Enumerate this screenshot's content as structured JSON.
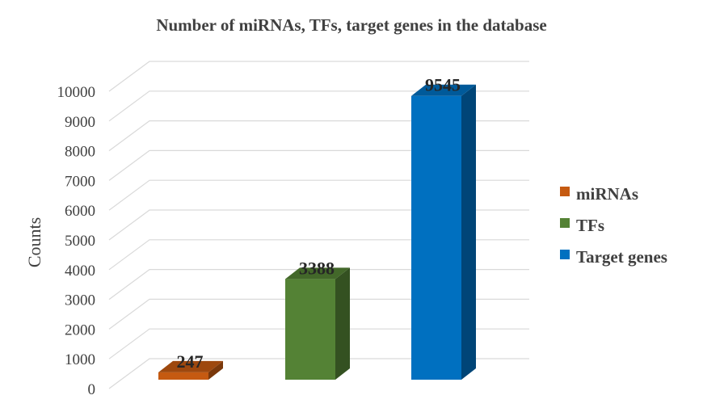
{
  "chart_data": {
    "type": "bar",
    "title": "Number of miRNAs, TFs, target genes in the database",
    "ylabel": "Counts",
    "xlabel": "",
    "ylim": [
      0,
      10000
    ],
    "yticks": [
      0,
      1000,
      2000,
      3000,
      4000,
      5000,
      6000,
      7000,
      8000,
      9000,
      10000
    ],
    "style": "3d-column",
    "grid": true,
    "legend_position": "right",
    "series": [
      {
        "name": "miRNAs",
        "values": [
          247
        ],
        "color": "#C55A11"
      },
      {
        "name": "TFs",
        "values": [
          3388
        ],
        "color": "#548235"
      },
      {
        "name": "Target genes",
        "values": [
          9545
        ],
        "color": "#0070C0"
      }
    ],
    "data_labels": [
      "247",
      "3388",
      "9545"
    ]
  }
}
